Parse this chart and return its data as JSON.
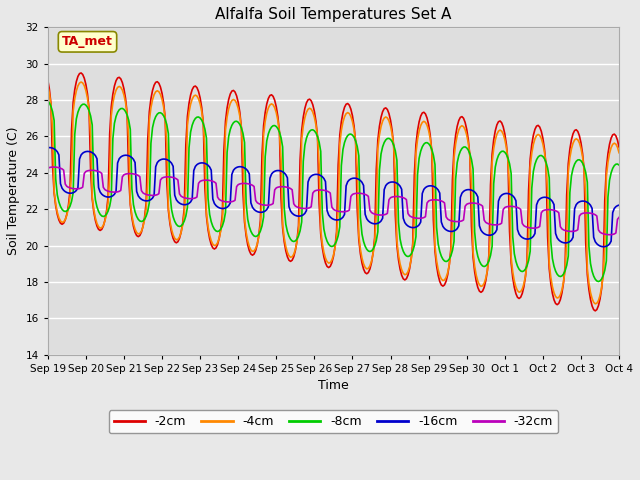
{
  "title": "Alfalfa Soil Temperatures Set A",
  "xlabel": "Time",
  "ylabel": "Soil Temperature (C)",
  "ylim": [
    14,
    32
  ],
  "yticks": [
    14,
    16,
    18,
    20,
    22,
    24,
    26,
    28,
    30,
    32
  ],
  "figsize": [
    6.4,
    4.8
  ],
  "dpi": 100,
  "fig_bg_color": "#e8e8e8",
  "plot_bg_color": "#dedede",
  "grid_color": "#ffffff",
  "legend_labels": [
    "-2cm",
    "-4cm",
    "-8cm",
    "-16cm",
    "-32cm"
  ],
  "legend_colors": [
    "#dd0000",
    "#ff8800",
    "#00cc00",
    "#0000cc",
    "#bb00bb"
  ],
  "annotation_text": "TA_met",
  "annotation_color": "#cc0000",
  "annotation_bg": "#ffffcc",
  "annotation_edge": "#888800",
  "start_day": 0,
  "end_day": 15,
  "tick_labels": [
    "Sep 19",
    "Sep 20",
    "Sep 21",
    "Sep 22",
    "Sep 23",
    "Sep 24",
    "Sep 25",
    "Sep 26",
    "Sep 27",
    "Sep 28",
    "Sep 29",
    "Sep 30",
    "Oct 1",
    "Oct 2",
    "Oct 3",
    "Oct 4"
  ],
  "linewidth": 1.2
}
